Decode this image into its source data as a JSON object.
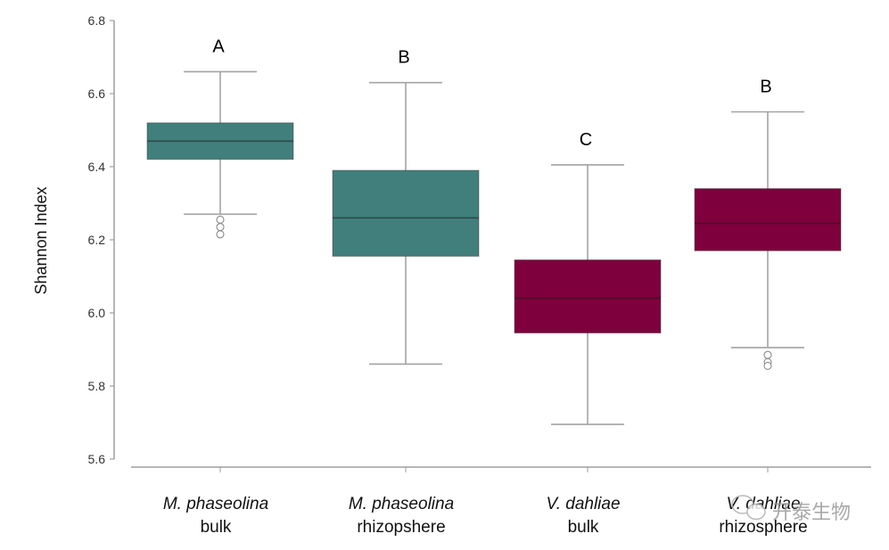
{
  "chart_data": {
    "type": "boxplot",
    "title": "",
    "xlabel": "",
    "ylabel": "Shannon Index",
    "ylim": [
      5.6,
      6.8
    ],
    "yticks": [
      "5.6",
      "5.8",
      "6.0",
      "6.2",
      "6.4",
      "6.6",
      "6.8"
    ],
    "grid": false,
    "legend": "none",
    "categories": [
      {
        "line1": "M. phaseolina",
        "line2": "bulk"
      },
      {
        "line1": "M. phaseolina",
        "line2": "rhizopshere"
      },
      {
        "line1": "V. dahliae",
        "line2": "bulk"
      },
      {
        "line1": "V. dahliae",
        "line2": "rhizosphere"
      }
    ],
    "boxes": [
      {
        "group": "M. phaseolina bulk",
        "whisker_low": 6.27,
        "q1": 6.42,
        "median": 6.47,
        "q3": 6.52,
        "whisker_high": 6.66,
        "outliers": [
          6.255,
          6.235,
          6.215
        ],
        "significance": "A",
        "color": "#407f7c"
      },
      {
        "group": "M. phaseolina rhizopshere",
        "whisker_low": 5.86,
        "q1": 6.155,
        "median": 6.26,
        "q3": 6.39,
        "whisker_high": 6.63,
        "outliers": [],
        "significance": "B",
        "color": "#407f7c"
      },
      {
        "group": "V. dahliae bulk",
        "whisker_low": 5.695,
        "q1": 5.945,
        "median": 6.04,
        "q3": 6.145,
        "whisker_high": 6.405,
        "outliers": [],
        "significance": "C",
        "color": "#7e003c"
      },
      {
        "group": "V. dahliae rhizosphere",
        "whisker_low": 5.905,
        "q1": 6.17,
        "median": 6.245,
        "q3": 6.34,
        "whisker_high": 6.55,
        "outliers": [
          5.885,
          5.865,
          5.855
        ],
        "significance": "B",
        "color": "#7e003c"
      }
    ]
  },
  "colors": {
    "teal": "#407f7c",
    "maroon": "#7e003c",
    "axis": "#9e9e9e"
  },
  "watermark": {
    "icon": "wechat-icon",
    "text": "开泰生物"
  }
}
